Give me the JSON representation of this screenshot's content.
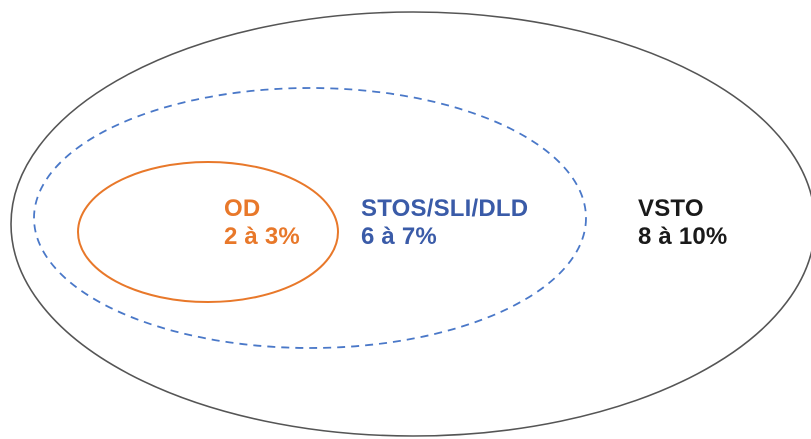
{
  "diagram": {
    "sets": [
      {
        "id": "od",
        "name": "OD",
        "range": "2 à 3%",
        "color": "#E8782A",
        "stroke": "solid"
      },
      {
        "id": "stos",
        "name": "STOS/SLI/DLD",
        "range": "6 à 7%",
        "color": "#3A5BA8",
        "stroke": "dashed"
      },
      {
        "id": "vsto",
        "name": "VSTO",
        "range": "8 à 10%",
        "color": "#1A1A1A",
        "stroke": "solid"
      }
    ],
    "outline_color": "#555555",
    "dashed_color": "#4A78C8"
  }
}
